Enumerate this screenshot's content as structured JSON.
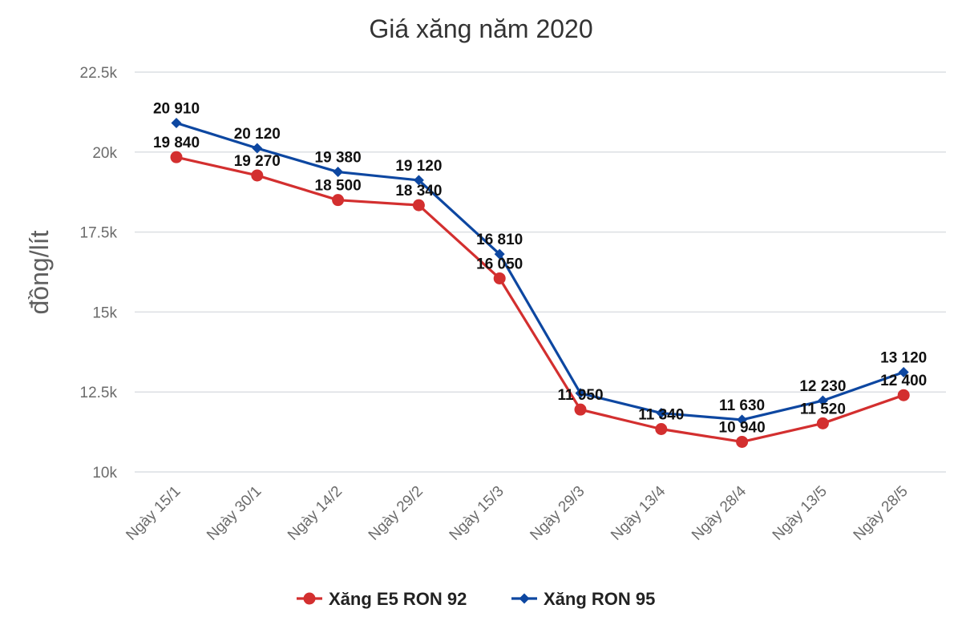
{
  "chart_data": {
    "type": "line",
    "title": "Giá xăng năm 2020",
    "xlabel": "",
    "ylabel": "đồng/lít",
    "ylim": [
      10000,
      22500
    ],
    "yticks": [
      {
        "value": 10000,
        "label": "10k"
      },
      {
        "value": 12500,
        "label": "12.5k"
      },
      {
        "value": 15000,
        "label": "15k"
      },
      {
        "value": 17500,
        "label": "17.5k"
      },
      {
        "value": 20000,
        "label": "20k"
      },
      {
        "value": 22500,
        "label": "22.5k"
      }
    ],
    "categories": [
      "Ngày 15/1",
      "Ngày 30/1",
      "Ngày 14/2",
      "Ngày 29/2",
      "Ngày 15/3",
      "Ngày 29/3",
      "Ngày 13/4",
      "Ngày 28/4",
      "Ngày 13/5",
      "Ngày 28/5"
    ],
    "grid": true,
    "legend_position": "bottom",
    "series": [
      {
        "name": "Xăng E5 RON 92",
        "color": "#d32f2f",
        "marker": "circle",
        "values": [
          19840,
          19270,
          18500,
          18340,
          16050,
          11950,
          11340,
          10940,
          11520,
          12400
        ],
        "labels": [
          "19 840",
          "19 270",
          "18 500",
          "18 340",
          "16 050",
          "11 950",
          "11 340",
          "10 940",
          "11 520",
          "12 400"
        ]
      },
      {
        "name": "Xăng RON 95",
        "color": "#0d47a1",
        "marker": "diamond",
        "values": [
          20910,
          20120,
          19380,
          19120,
          16810,
          12460,
          11840,
          11630,
          12230,
          13120
        ],
        "labels": [
          "20 910",
          "20 120",
          "19 380",
          "19 120",
          "16 810",
          "",
          "",
          "11 630",
          "12 230",
          "13 120"
        ]
      }
    ]
  }
}
